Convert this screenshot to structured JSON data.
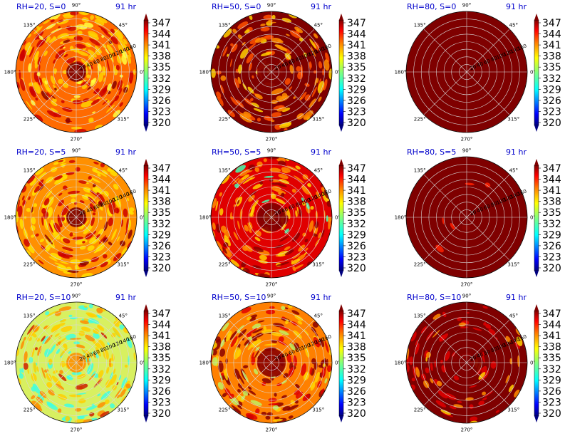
{
  "chart_data": {
    "type": "heatmap",
    "colorbar": {
      "ticks": [
        "347",
        "344",
        "341",
        "338",
        "335",
        "332",
        "329",
        "326",
        "323",
        "320"
      ],
      "min": 320,
      "max": 347,
      "colormap": "jet"
    },
    "angle_labels": [
      "90°",
      "45°",
      "0°",
      "315°",
      "270°",
      "225°",
      "180°",
      "135°"
    ],
    "radial_labels": [
      "20",
      "40",
      "60",
      "80",
      "100",
      "120",
      "140",
      "160"
    ],
    "panels": [
      {
        "title": "RH=20, S=0",
        "time": "91 hr"
      },
      {
        "title": "RH=50, S=0",
        "time": "91 hr"
      },
      {
        "title": "RH=80, S=0",
        "time": "91 hr"
      },
      {
        "title": "RH=20, S=5",
        "time": "91 hr"
      },
      {
        "title": "RH=50, S=5",
        "time": "91 hr"
      },
      {
        "title": "RH=80, S=5",
        "time": "91 hr"
      },
      {
        "title": "RH=20, S=10",
        "time": "91 hr"
      },
      {
        "title": "RH=50, S=10",
        "time": "91 hr"
      },
      {
        "title": "RH=80, S=10",
        "time": "91 hr"
      }
    ]
  }
}
